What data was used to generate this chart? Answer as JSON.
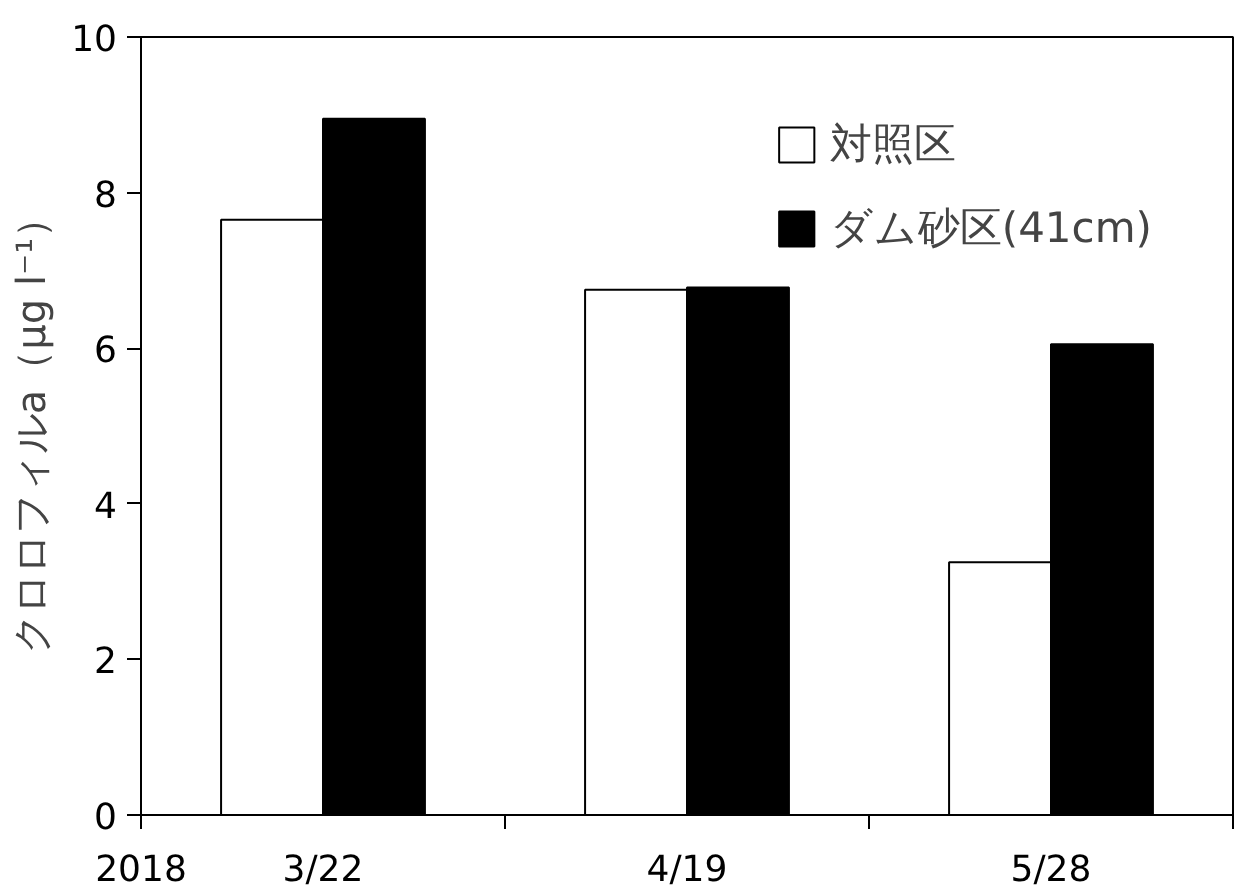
{
  "chart_data": {
    "type": "bar",
    "ylabel": "クロロフィルa（μg l⁻¹）",
    "categories": [
      "3/22",
      "4/19",
      "5/28"
    ],
    "series": [
      {
        "name": "対照区",
        "color": "#ffffff",
        "values": [
          7.65,
          6.75,
          3.25
        ]
      },
      {
        "name": "ダム砂区(41cm)",
        "color": "#000000",
        "values": [
          8.95,
          6.78,
          6.05
        ]
      }
    ],
    "ylim": [
      0,
      10
    ],
    "yticks": [
      0,
      2,
      4,
      6,
      8,
      10
    ],
    "grid": false,
    "legend": "top right",
    "annotations": [
      "2018"
    ]
  }
}
